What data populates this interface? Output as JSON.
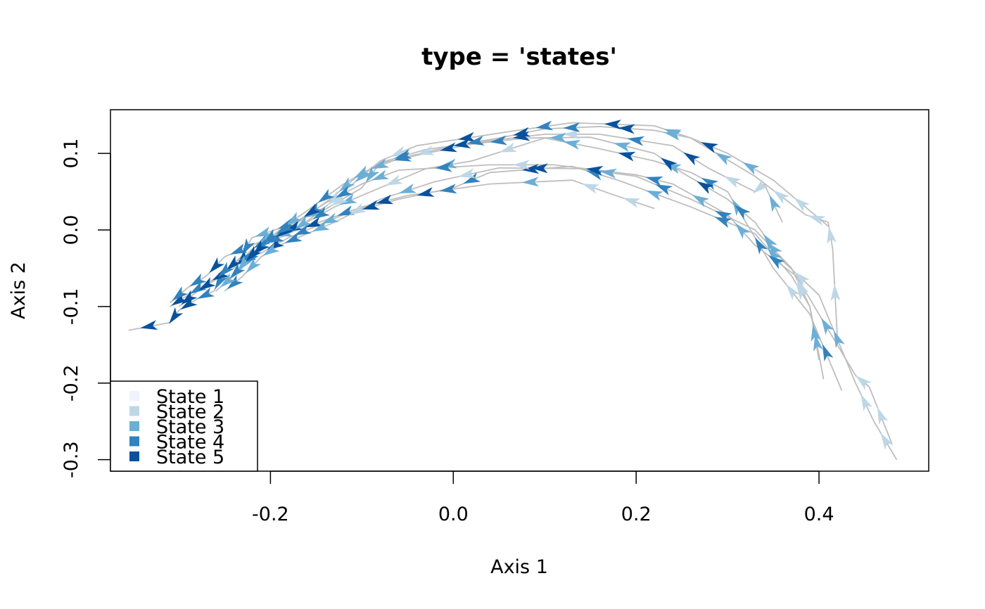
{
  "chart_data": {
    "type": "line",
    "title": "type = 'states'",
    "xlabel": "Axis 1",
    "ylabel": "Axis 2",
    "xlim": [
      -0.375,
      0.52
    ],
    "ylim": [
      -0.315,
      0.157
    ],
    "xticks": [
      -0.2,
      0.0,
      0.2,
      0.4
    ],
    "xtick_labels": [
      "-0.2",
      "0.0",
      "0.2",
      "0.4"
    ],
    "yticks": [
      -0.3,
      -0.2,
      -0.1,
      0.0,
      0.1
    ],
    "ytick_labels": [
      "-0.3",
      "-0.2",
      "-0.1",
      "0.0",
      "0.1"
    ],
    "grid": false,
    "legend_position": "bottom-left",
    "line_color": "#BEBEBE",
    "state_colors": [
      "#EFF3FF",
      "#BDD7E7",
      "#6BAED6",
      "#3182BD",
      "#08519C"
    ],
    "legend": [
      "State 1",
      "State 2",
      "State 3",
      "State 4",
      "State 5"
    ],
    "trajectories": [
      {
        "points": [
          [
            -0.355,
            -0.131
          ],
          [
            -0.31,
            -0.121
          ],
          [
            -0.3,
            -0.105
          ],
          [
            -0.28,
            -0.09
          ],
          [
            -0.262,
            -0.08
          ],
          [
            -0.25,
            -0.055
          ],
          [
            -0.232,
            -0.035
          ],
          [
            -0.22,
            -0.01
          ],
          [
            -0.195,
            0.0
          ],
          [
            -0.17,
            0.012
          ],
          [
            -0.14,
            0.03
          ],
          [
            -0.12,
            0.05
          ],
          [
            -0.08,
            0.09
          ],
          [
            -0.04,
            0.11
          ],
          [
            0.07,
            0.13
          ],
          [
            0.13,
            0.14
          ],
          [
            0.22,
            0.136
          ],
          [
            0.26,
            0.12
          ],
          [
            0.33,
            0.07
          ],
          [
            0.385,
            0.02
          ],
          [
            0.41,
            0.01
          ],
          [
            0.415,
            -0.025
          ],
          [
            0.42,
            -0.14
          ]
        ],
        "states": [
          5,
          5,
          5,
          4,
          4,
          5,
          4,
          3,
          4,
          3,
          2,
          3,
          2,
          5,
          4,
          5,
          3,
          3,
          2,
          2,
          2,
          2
        ]
      },
      {
        "points": [
          [
            -0.31,
            -0.1
          ],
          [
            -0.29,
            -0.085
          ],
          [
            -0.27,
            -0.07
          ],
          [
            -0.24,
            -0.05
          ],
          [
            -0.22,
            -0.025
          ],
          [
            -0.2,
            -0.01
          ],
          [
            -0.17,
            0.0
          ],
          [
            -0.135,
            0.015
          ],
          [
            -0.1,
            0.03
          ],
          [
            -0.05,
            0.045
          ],
          [
            0.04,
            0.06
          ],
          [
            0.13,
            0.065
          ],
          [
            0.17,
            0.048
          ],
          [
            0.22,
            0.028
          ]
        ],
        "states": [
          5,
          4,
          5,
          5,
          4,
          3,
          5,
          4,
          5,
          4,
          3,
          2,
          2
        ]
      },
      {
        "points": [
          [
            -0.3,
            -0.1
          ],
          [
            -0.28,
            -0.08
          ],
          [
            -0.26,
            -0.065
          ],
          [
            -0.24,
            -0.042
          ],
          [
            -0.21,
            -0.03
          ],
          [
            -0.18,
            -0.01
          ],
          [
            -0.15,
            0.005
          ],
          [
            -0.12,
            0.02
          ],
          [
            -0.06,
            0.04
          ],
          [
            0.0,
            0.055
          ],
          [
            0.04,
            0.075
          ],
          [
            0.13,
            0.083
          ],
          [
            0.18,
            0.065
          ],
          [
            0.26,
            0.03
          ],
          [
            0.33,
            -0.005
          ],
          [
            0.37,
            -0.06
          ],
          [
            0.39,
            -0.1
          ],
          [
            0.4,
            -0.17
          ]
        ],
        "states": [
          5,
          5,
          4,
          4,
          5,
          4,
          3,
          5,
          5,
          4,
          5,
          4,
          3,
          4,
          3,
          2,
          3
        ]
      },
      {
        "points": [
          [
            -0.31,
            -0.095
          ],
          [
            -0.29,
            -0.075
          ],
          [
            -0.27,
            -0.06
          ],
          [
            -0.25,
            -0.035
          ],
          [
            -0.22,
            -0.02
          ],
          [
            -0.19,
            -0.005
          ],
          [
            -0.16,
            0.01
          ],
          [
            -0.13,
            0.03
          ],
          [
            -0.1,
            0.045
          ],
          [
            -0.03,
            0.08
          ],
          [
            0.02,
            0.09
          ],
          [
            0.1,
            0.12
          ],
          [
            0.16,
            0.106
          ],
          [
            0.22,
            0.09
          ],
          [
            0.26,
            0.075
          ],
          [
            0.3,
            0.05
          ],
          [
            0.32,
            0.01
          ],
          [
            0.35,
            -0.05
          ],
          [
            0.39,
            -0.11
          ],
          [
            0.425,
            -0.21
          ]
        ],
        "states": [
          4,
          4,
          5,
          4,
          3,
          5,
          4,
          3,
          2,
          3,
          2,
          3,
          5,
          3,
          4,
          3,
          4,
          2,
          4
        ]
      },
      {
        "points": [
          [
            -0.25,
            -0.08
          ],
          [
            -0.23,
            -0.06
          ],
          [
            -0.21,
            -0.035
          ],
          [
            -0.19,
            -0.02
          ],
          [
            -0.16,
            -0.005
          ],
          [
            -0.13,
            0.01
          ],
          [
            -0.08,
            0.04
          ],
          [
            -0.02,
            0.063
          ],
          [
            0.05,
            0.081
          ],
          [
            0.14,
            0.08
          ],
          [
            0.2,
            0.07
          ],
          [
            0.26,
            0.04
          ],
          [
            0.33,
            0.0
          ],
          [
            0.37,
            -0.05
          ],
          [
            0.39,
            -0.1
          ],
          [
            0.405,
            -0.195
          ]
        ],
        "states": [
          4,
          3,
          3,
          4,
          3,
          2,
          3,
          2,
          5,
          3,
          4,
          4,
          3,
          2,
          3
        ]
      },
      {
        "points": [
          [
            -0.26,
            -0.08
          ],
          [
            -0.235,
            -0.055
          ],
          [
            -0.21,
            -0.02
          ],
          [
            -0.18,
            -0.005
          ],
          [
            -0.15,
            0.02
          ],
          [
            -0.1,
            0.055
          ],
          [
            -0.08,
            0.088
          ],
          [
            -0.03,
            0.105
          ],
          [
            0.05,
            0.118
          ],
          [
            0.1,
            0.125
          ],
          [
            0.16,
            0.125
          ],
          [
            0.24,
            0.11
          ],
          [
            0.28,
            0.08
          ],
          [
            0.33,
            0.05
          ],
          [
            0.34,
            0.06
          ],
          [
            0.36,
            0.01
          ]
        ],
        "states": [
          3,
          4,
          4,
          3,
          2,
          3,
          4,
          5,
          5,
          2,
          4,
          5,
          2,
          2,
          3
        ]
      },
      {
        "points": [
          [
            -0.23,
            -0.045
          ],
          [
            -0.21,
            -0.02
          ],
          [
            -0.19,
            0.0
          ],
          [
            -0.16,
            0.025
          ],
          [
            -0.12,
            0.06
          ],
          [
            -0.08,
            0.087
          ],
          [
            -0.03,
            0.1
          ],
          [
            0.02,
            0.112
          ],
          [
            0.08,
            0.12
          ],
          [
            0.15,
            0.121
          ],
          [
            0.22,
            0.1
          ],
          [
            0.25,
            0.075
          ],
          [
            0.3,
            0.04
          ],
          [
            0.33,
            0.01
          ],
          [
            0.36,
            -0.04
          ],
          [
            0.4,
            -0.085
          ],
          [
            0.44,
            -0.2
          ],
          [
            0.46,
            -0.25
          ],
          [
            0.485,
            -0.3
          ]
        ],
        "states": [
          5,
          4,
          3,
          4,
          3,
          4,
          5,
          4,
          3,
          3,
          5,
          5,
          4,
          3,
          2,
          3,
          2,
          2
        ]
      },
      {
        "points": [
          [
            -0.24,
            -0.06
          ],
          [
            -0.22,
            -0.03
          ],
          [
            -0.2,
            -0.015
          ],
          [
            -0.17,
            0.01
          ],
          [
            -0.135,
            0.04
          ],
          [
            -0.1,
            0.075
          ],
          [
            -0.06,
            0.093
          ],
          [
            0.0,
            0.11
          ],
          [
            0.05,
            0.12
          ],
          [
            0.1,
            0.132
          ],
          [
            0.16,
            0.135
          ],
          [
            0.22,
            0.13
          ],
          [
            0.26,
            0.12
          ],
          [
            0.3,
            0.1
          ],
          [
            0.35,
            0.065
          ],
          [
            0.41,
            0.005
          ]
        ],
        "states": [
          3,
          4,
          5,
          4,
          3,
          3,
          2,
          4,
          5,
          4,
          5,
          3,
          5,
          3,
          2
        ]
      },
      {
        "points": [
          [
            -0.25,
            -0.07
          ],
          [
            -0.225,
            -0.04
          ],
          [
            -0.2,
            -0.01
          ],
          [
            -0.17,
            0.012
          ],
          [
            -0.14,
            0.035
          ],
          [
            -0.1,
            0.06
          ],
          [
            -0.06,
            0.078
          ],
          [
            0.04,
            0.085
          ],
          [
            0.11,
            0.085
          ],
          [
            0.2,
            0.072
          ],
          [
            0.24,
            0.06
          ],
          [
            0.3,
            0.02
          ],
          [
            0.33,
            -0.02
          ],
          [
            0.375,
            -0.06
          ],
          [
            0.44,
            -0.19
          ],
          [
            0.455,
            -0.205
          ],
          [
            0.48,
            -0.28
          ]
        ],
        "states": [
          4,
          5,
          4,
          5,
          4,
          3,
          4,
          2,
          5,
          4,
          3,
          3,
          4,
          3,
          2,
          2
        ]
      }
    ]
  }
}
